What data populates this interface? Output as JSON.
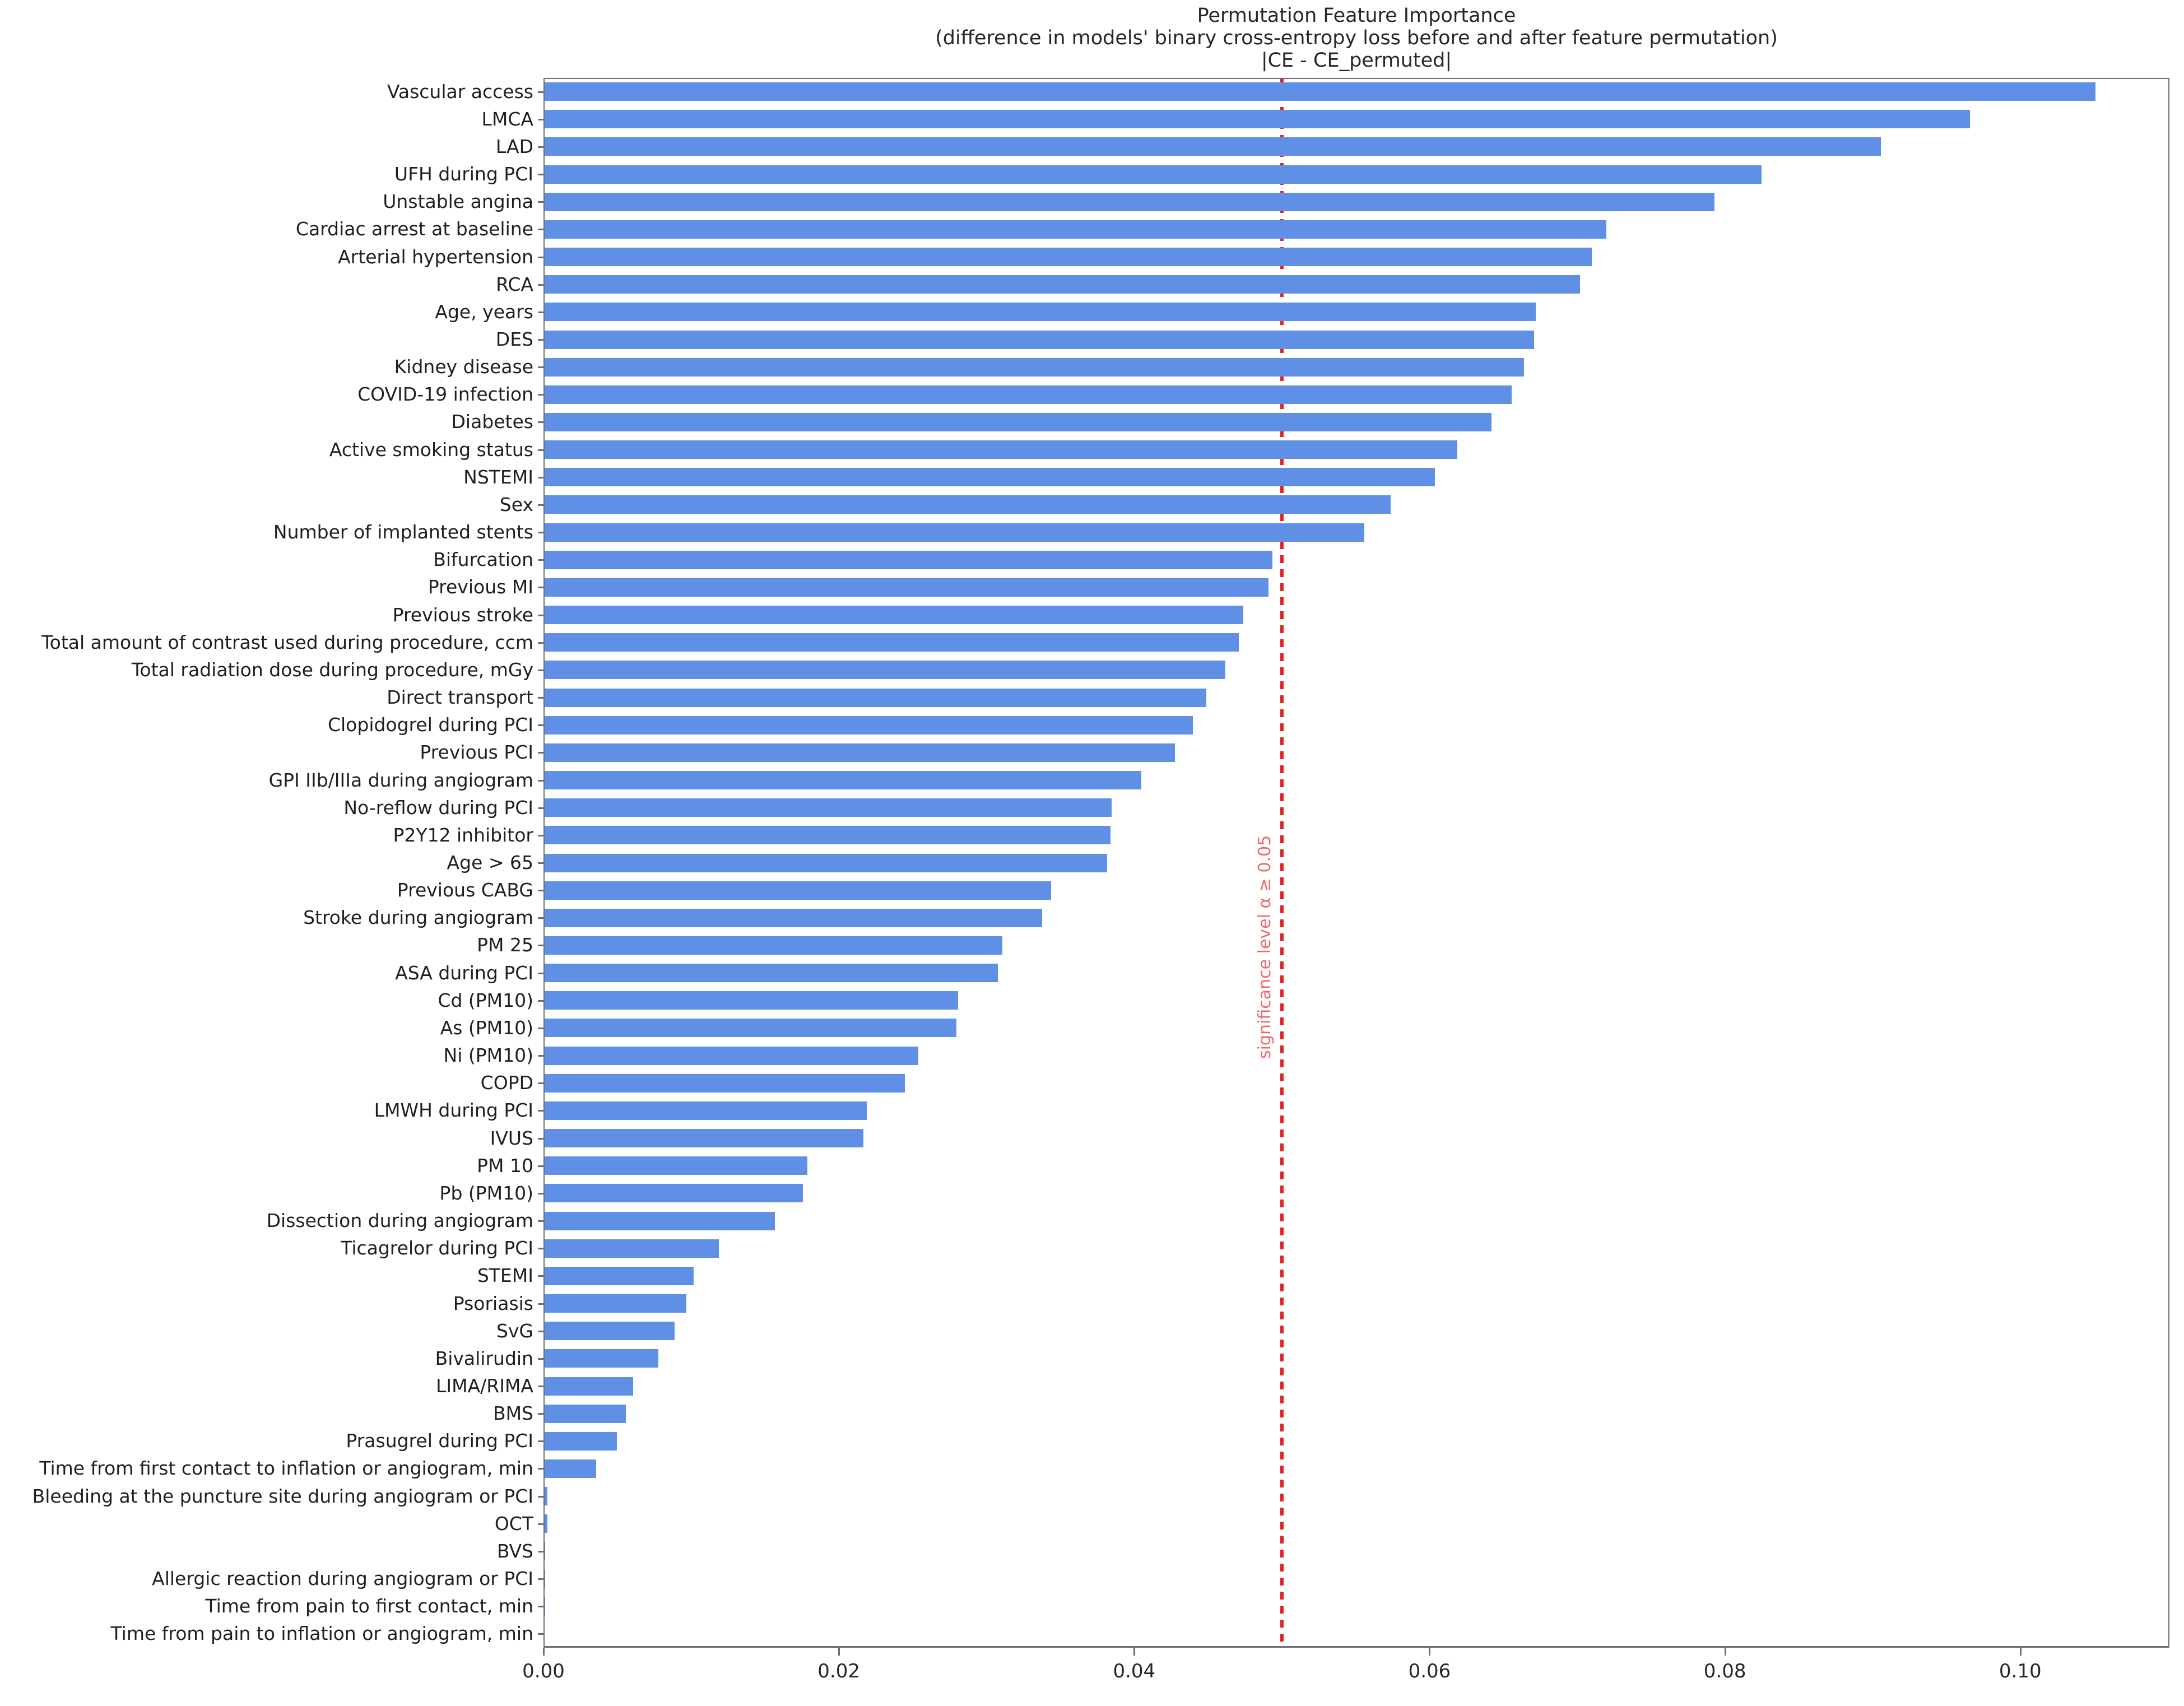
{
  "page": {
    "background": "#ffffff"
  },
  "chart_data": {
    "type": "bar",
    "orientation": "horizontal",
    "title": "Permutation Feature Importance",
    "subtitle": "(difference in models' binary cross-entropy loss before and after feature permutation)",
    "subtitle2": "|CE - CE_permuted|",
    "xlabel": "",
    "ylabel": "",
    "grid": false,
    "xlim": [
      0,
      0.1101
    ],
    "bar_color": "#6090e6",
    "spine_color": "#6e6e6e",
    "x_ticks": [
      {
        "label": "0.00",
        "value": 0.0
      },
      {
        "label": "0.02",
        "value": 0.02
      },
      {
        "label": "0.04",
        "value": 0.04
      },
      {
        "label": "0.06",
        "value": 0.06
      },
      {
        "label": "0.08",
        "value": 0.08
      },
      {
        "label": "0.10",
        "value": 0.1
      }
    ],
    "significance_line": {
      "value": 0.05,
      "label": "significance level α ≥ 0.05",
      "line_color": "#e02424",
      "text_color": "#ef6a6a",
      "style": "dotted"
    },
    "categories": [
      "Vascular access",
      "LMCA",
      "LAD",
      "UFH during PCI",
      "Unstable angina",
      "Cardiac arrest at baseline",
      "Arterial hypertension",
      "RCA",
      "Age, years",
      "DES",
      "Kidney disease",
      "COVID-19 infection",
      "Diabetes",
      "Active smoking status",
      "NSTEMI",
      "Sex",
      "Number of implanted stents",
      "Bifurcation",
      "Previous MI",
      "Previous stroke",
      "Total amount of contrast used during procedure, ccm",
      "Total radiation dose during procedure, mGy",
      "Direct transport",
      "Clopidogrel during PCI",
      "Previous PCI",
      "GPI IIb/IIIa during angiogram",
      "No-reflow during PCI",
      "P2Y12 inhibitor",
      "Age > 65",
      "Previous CABG",
      "Stroke during angiogram",
      "PM 25",
      "ASA during PCI",
      "Cd (PM10)",
      "As (PM10)",
      "Ni (PM10)",
      "COPD",
      "LMWH during PCI",
      "IVUS",
      "PM 10",
      "Pb (PM10)",
      "Dissection during angiogram",
      "Ticagrelor during PCI",
      "STEMI",
      "Psoriasis",
      "SvG",
      "Bivalirudin",
      "LIMA/RIMA",
      "BMS",
      "Prasugrel during PCI",
      "Time from first contact to inflation or angiogram, min",
      "Bleeding at the puncture site during angiogram or PCI",
      "OCT",
      "BVS",
      "Allergic reaction during angiogram or PCI",
      "Time from pain to first contact, min",
      "Time from pain to inflation or angiogram, min"
    ],
    "values": [
      0.105,
      0.0965,
      0.0905,
      0.0824,
      0.0792,
      0.0719,
      0.0709,
      0.0701,
      0.0671,
      0.067,
      0.0663,
      0.0655,
      0.0641,
      0.0618,
      0.0603,
      0.0573,
      0.0555,
      0.0493,
      0.049,
      0.0473,
      0.047,
      0.0461,
      0.0448,
      0.0439,
      0.0427,
      0.0404,
      0.0384,
      0.0383,
      0.0381,
      0.0343,
      0.0337,
      0.031,
      0.0307,
      0.028,
      0.0279,
      0.0253,
      0.0244,
      0.0218,
      0.0216,
      0.0178,
      0.0175,
      0.0156,
      0.0118,
      0.0101,
      0.0096,
      0.0088,
      0.0077,
      0.006,
      0.0055,
      0.0049,
      0.0035,
      0.0002,
      0.0002,
      5e-05,
      2e-05,
      2e-05,
      1e-05
    ]
  }
}
